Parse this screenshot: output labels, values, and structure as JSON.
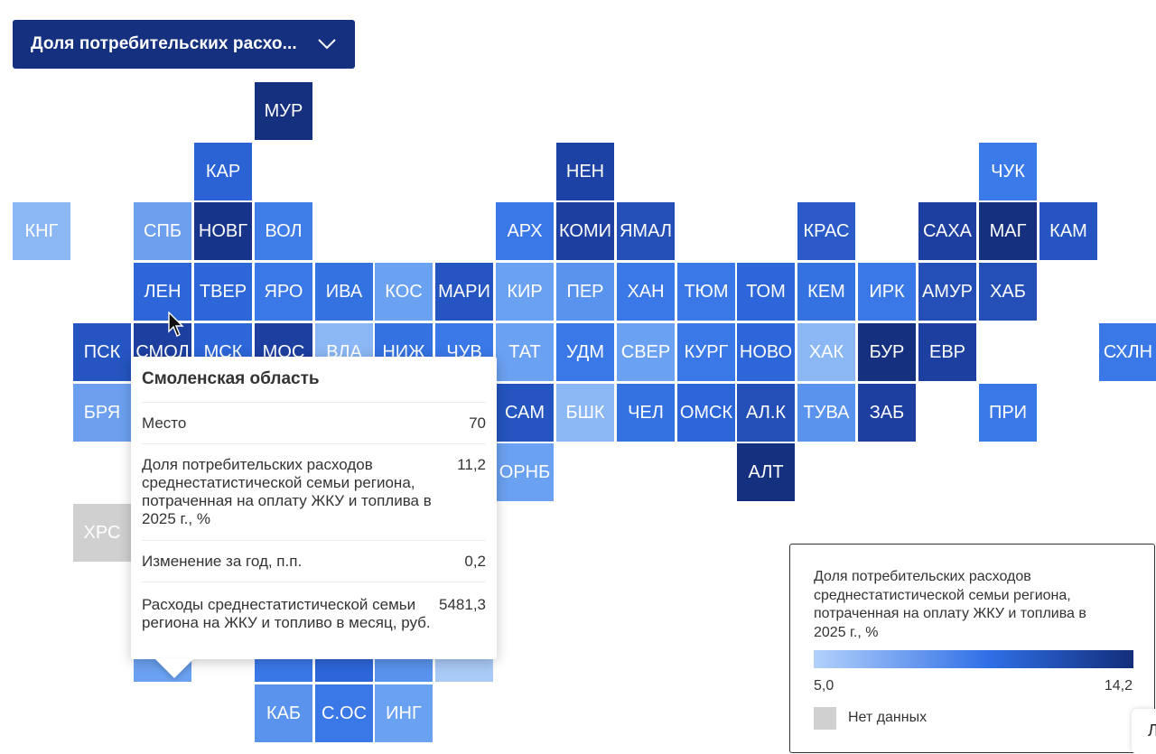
{
  "dropdown": {
    "label": "Доля потребительских расхо..."
  },
  "tiles": [
    {
      "label": "МУР",
      "color": "#15307e"
    },
    {
      "label": "КАР",
      "color": "#2b62d4"
    },
    {
      "label": "НЕН",
      "color": "#1d42a6"
    },
    {
      "label": "ЧУК",
      "color": "#3a7ae9"
    },
    {
      "label": "КНГ",
      "color": "#8bb7f4"
    },
    {
      "label": "СПБ",
      "color": "#6ca0ef"
    },
    {
      "label": "НОВГ",
      "color": "#16348a"
    },
    {
      "label": "ВОЛ",
      "color": "#3f7de8"
    },
    {
      "label": "АРХ",
      "color": "#3a78e8"
    },
    {
      "label": "КОМИ",
      "color": "#1d3fa0"
    },
    {
      "label": "ЯМАЛ",
      "color": "#244fb7"
    },
    {
      "label": "КРАС",
      "color": "#2a5bc8"
    },
    {
      "label": "САХА",
      "color": "#1d3fa0"
    },
    {
      "label": "МАГ",
      "color": "#15307e"
    },
    {
      "label": "КАМ",
      "color": "#2455c0"
    },
    {
      "label": "ЛЕН",
      "color": "#2c66d8"
    },
    {
      "label": "ТВЕР",
      "color": "#2c66d8"
    },
    {
      "label": "ЯРО",
      "color": "#3a78e8"
    },
    {
      "label": "ИВА",
      "color": "#3472e2"
    },
    {
      "label": "КОС",
      "color": "#6aa1f0"
    },
    {
      "label": "МАРИ",
      "color": "#2455c0"
    },
    {
      "label": "КИР",
      "color": "#6aa1f0"
    },
    {
      "label": "ПЕР",
      "color": "#5a93ee"
    },
    {
      "label": "ХАН",
      "color": "#3a78e8"
    },
    {
      "label": "ТЮМ",
      "color": "#3a78e8"
    },
    {
      "label": "ТОМ",
      "color": "#2c66d8"
    },
    {
      "label": "КЕМ",
      "color": "#3472e2"
    },
    {
      "label": "ИРК",
      "color": "#3a78e8"
    },
    {
      "label": "АМУР",
      "color": "#244fb7"
    },
    {
      "label": "ХАБ",
      "color": "#244fb7"
    },
    {
      "label": "ПСК",
      "color": "#2455c0"
    },
    {
      "label": "СМОЛ",
      "color": "#1d3fa0"
    },
    {
      "label": "МСК",
      "color": "#2c66d8"
    },
    {
      "label": "МОС",
      "color": "#1d3fa0"
    },
    {
      "label": "ВЛА",
      "color": "#8bb7f4"
    },
    {
      "label": "НИЖ",
      "color": "#3472e2"
    },
    {
      "label": "ЧУВ",
      "color": "#3a78e8"
    },
    {
      "label": "ТАТ",
      "color": "#6aa1f0"
    },
    {
      "label": "УДМ",
      "color": "#3a78e8"
    },
    {
      "label": "СВЕР",
      "color": "#6aa1f0"
    },
    {
      "label": "КУРГ",
      "color": "#3a78e8"
    },
    {
      "label": "НОВО",
      "color": "#2c66d8"
    },
    {
      "label": "ХАК",
      "color": "#8bb7f4"
    },
    {
      "label": "БУР",
      "color": "#15307e"
    },
    {
      "label": "ЕВР",
      "color": "#1d3fa0"
    },
    {
      "label": "СХЛН",
      "color": "#3a78e8"
    },
    {
      "label": "БРЯ",
      "color": "#6ca0ef"
    },
    {
      "label": "САМ",
      "color": "#2455c0"
    },
    {
      "label": "БШК",
      "color": "#8bb7f4"
    },
    {
      "label": "ЧЕЛ",
      "color": "#3472e2"
    },
    {
      "label": "ОМСК",
      "color": "#2c66d8"
    },
    {
      "label": "АЛ.К",
      "color": "#244fb7"
    },
    {
      "label": "ТУВА",
      "color": "#5a93ee"
    },
    {
      "label": "ЗАБ",
      "color": "#1d3fa0"
    },
    {
      "label": "ПРИ",
      "color": "#3a78e8"
    },
    {
      "label": "ОРНБ",
      "color": "#6aa1f0"
    },
    {
      "label": "АЛТ",
      "color": "#15307e"
    },
    {
      "label": "ХРС",
      "color": "#d0d0d0"
    },
    {
      "label": "КАБ",
      "color": "#5a93ee"
    },
    {
      "label": "С.ОС",
      "color": "#3a78e8"
    },
    {
      "label": "ИНГ",
      "color": "#6aa1f0"
    },
    {
      "label": "",
      "color": "#6aa1f0"
    },
    {
      "label": "",
      "color": "#3a78e8"
    },
    {
      "label": "",
      "color": "#2c66d8"
    },
    {
      "label": "",
      "color": "#5a93ee"
    },
    {
      "label": "",
      "color": "#a9caf6"
    }
  ],
  "tooltip": {
    "title": "Смоленская область",
    "rows": [
      {
        "label": "Место",
        "value": "70"
      },
      {
        "label": "Доля потребительских расходов среднестатистической семьи региона, потраченная на оплату ЖКУ и топлива в 2025 г., %",
        "value": "11,2"
      },
      {
        "label": "Изменение за год, п.п.",
        "value": "0,2"
      },
      {
        "label": "Расходы среднестатистической семьи региона на ЖКУ и топливо в месяц, руб.",
        "value": "5481,3"
      }
    ]
  },
  "legend": {
    "title": "Доля потребительских расходов среднестатистической семьи региона, потраченная на оплату ЖКУ и топлива в 2025 г., %",
    "min": "5,0",
    "max": "14,2",
    "no_data": "Нет данных",
    "gradient": {
      "from": "#b3d1fb",
      "mid": "#2f6fe6",
      "to": "#132e7a"
    },
    "no_data_color": "#d0d0d0"
  },
  "corner": {
    "label": "Л"
  }
}
